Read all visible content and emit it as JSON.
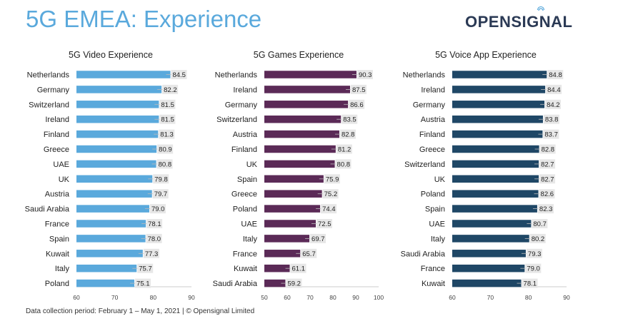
{
  "header": {
    "title": "5G EMEA: Experience",
    "logo_text": "OPENSIGNAL"
  },
  "footer": {
    "note": "Data collection period: February 1 – May 1, 2021  |  © Opensignal Limited"
  },
  "chart_data": [
    {
      "type": "bar",
      "orientation": "horizontal",
      "title": "5G Video Experience",
      "color": "#5aa9dc",
      "categories": [
        "Netherlands",
        "Germany",
        "Switzerland",
        "Ireland",
        "Finland",
        "Greece",
        "UAE",
        "UK",
        "Austria",
        "Saudi Arabia",
        "France",
        "Spain",
        "Kuwait",
        "Italy",
        "Poland"
      ],
      "values": [
        84.5,
        82.2,
        81.5,
        81.5,
        81.3,
        80.9,
        80.8,
        79.8,
        79.7,
        79.0,
        78.1,
        78.0,
        77.3,
        75.7,
        75.1
      ],
      "value_labels": [
        "84.5",
        "82.2",
        "81.5",
        "81.5",
        "81.3",
        "80.9",
        "80.8",
        "79.8",
        "79.7",
        "79.0",
        "78.1",
        "78.0",
        "77.3",
        "75.7",
        "75.1"
      ],
      "xlim": [
        60,
        90
      ],
      "ticks": [
        60,
        70,
        80,
        90
      ]
    },
    {
      "type": "bar",
      "orientation": "horizontal",
      "title": "5G Games Experience",
      "color": "#5b2a57",
      "categories": [
        "Netherlands",
        "Ireland",
        "Germany",
        "Switzerland",
        "Austria",
        "Finland",
        "UK",
        "Spain",
        "Greece",
        "Poland",
        "UAE",
        "Italy",
        "France",
        "Kuwait",
        "Saudi Arabia"
      ],
      "values": [
        90.3,
        87.5,
        86.6,
        83.5,
        82.8,
        81.2,
        80.8,
        75.9,
        75.2,
        74.4,
        72.5,
        69.7,
        65.7,
        61.1,
        59.2
      ],
      "value_labels": [
        "90.3",
        "87.5",
        "86.6",
        "83.5",
        "82.8",
        "81.2",
        "80.8",
        "75.9",
        "75.2",
        "74.4",
        "72.5",
        "69.7",
        "65.7",
        "61.1",
        "59.2"
      ],
      "xlim": [
        50,
        100
      ],
      "ticks": [
        50,
        60,
        70,
        80,
        90,
        100
      ]
    },
    {
      "type": "bar",
      "orientation": "horizontal",
      "title": "5G Voice App Experience",
      "color": "#1f4766",
      "categories": [
        "Netherlands",
        "Ireland",
        "Germany",
        "Austria",
        "Finland",
        "Greece",
        "Switzerland",
        "UK",
        "Poland",
        "Spain",
        "UAE",
        "Italy",
        "Saudi Arabia",
        "France",
        "Kuwait"
      ],
      "values": [
        84.8,
        84.4,
        84.2,
        83.8,
        83.7,
        82.8,
        82.7,
        82.7,
        82.6,
        82.3,
        80.7,
        80.2,
        79.3,
        79.0,
        78.1
      ],
      "value_labels": [
        "84.8",
        "84.4",
        "84.2",
        "83.8",
        "83.7",
        "82.8",
        "82.7",
        "82.7",
        "82.6",
        "82.3",
        "80.7",
        "80.2",
        "79.3",
        "79.0",
        "78.1"
      ],
      "xlim": [
        60,
        90
      ],
      "ticks": [
        60,
        70,
        80,
        90
      ]
    }
  ]
}
